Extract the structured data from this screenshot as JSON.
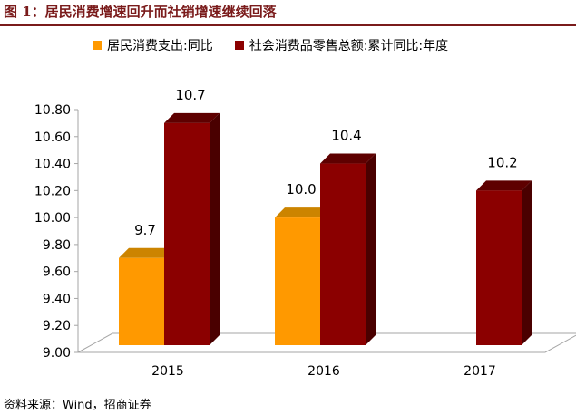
{
  "figure": {
    "title": "图 1：居民消费增速回升而社销增速继续回落",
    "source": "资料来源：Wind，招商证券"
  },
  "colors": {
    "title": "#7a1b1b",
    "series1_front": "#ff9900",
    "series1_side": "#b86e00",
    "series1_top": "#cc8400",
    "series2_front": "#8b0000",
    "series2_side": "#4a0000",
    "series2_top": "#5e0000"
  },
  "chart_data": {
    "type": "bar",
    "categories": [
      "2015",
      "2016",
      "2017"
    ],
    "series": [
      {
        "name": "居民消费支出:同比",
        "values": [
          9.7,
          10.0,
          null
        ],
        "labels": [
          "9.7",
          "10.0",
          null
        ]
      },
      {
        "name": "社会消费品零售总额:累计同比:年度",
        "values": [
          10.7,
          10.4,
          10.2
        ],
        "labels": [
          "10.7",
          "10.4",
          "10.2"
        ]
      }
    ],
    "ylim": [
      9.0,
      10.8
    ],
    "yticks": [
      "9.00",
      "9.20",
      "9.40",
      "9.60",
      "9.80",
      "10.00",
      "10.20",
      "10.40",
      "10.60",
      "10.80"
    ],
    "legend": "top",
    "grid": false,
    "style": "3d"
  }
}
